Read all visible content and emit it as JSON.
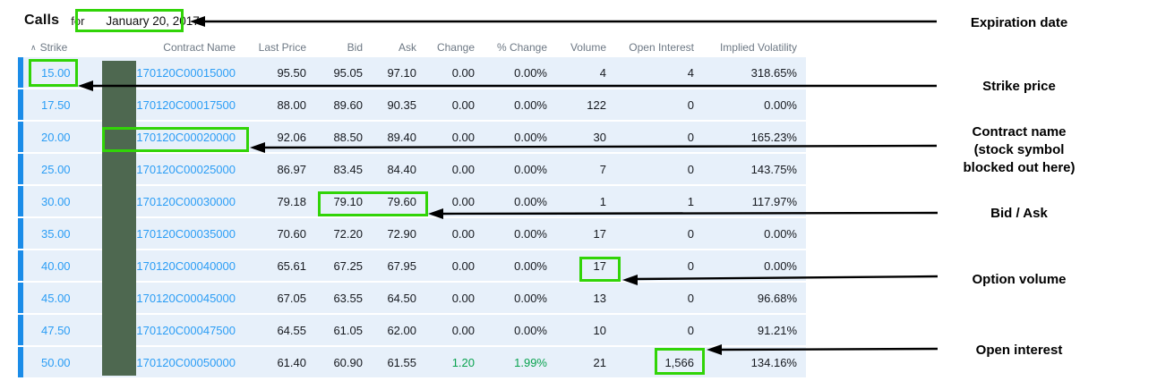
{
  "header": {
    "title": "Calls",
    "preposition": "for",
    "expiration_date": "January 20, 2017"
  },
  "table": {
    "sort_icon": "∧",
    "columns": [
      {
        "key": "strike",
        "label": "Strike",
        "link": true
      },
      {
        "key": "contract",
        "label": "Contract Name",
        "link": true
      },
      {
        "key": "last",
        "label": "Last Price"
      },
      {
        "key": "bid",
        "label": "Bid"
      },
      {
        "key": "ask",
        "label": "Ask"
      },
      {
        "key": "change",
        "label": "Change"
      },
      {
        "key": "pct_change",
        "label": "% Change"
      },
      {
        "key": "volume",
        "label": "Volume"
      },
      {
        "key": "open_interest",
        "label": "Open Interest"
      },
      {
        "key": "iv",
        "label": "Implied Volatility"
      }
    ],
    "rows": [
      {
        "strike": "15.00",
        "contract": "170120C00015000",
        "last": "95.50",
        "bid": "95.05",
        "ask": "97.10",
        "change": "0.00",
        "pct_change": "0.00%",
        "volume": "4",
        "open_interest": "4",
        "iv": "318.65%",
        "change_positive": false
      },
      {
        "strike": "17.50",
        "contract": "170120C00017500",
        "last": "88.00",
        "bid": "89.60",
        "ask": "90.35",
        "change": "0.00",
        "pct_change": "0.00%",
        "volume": "122",
        "open_interest": "0",
        "iv": "0.00%",
        "change_positive": false
      },
      {
        "strike": "20.00",
        "contract": "170120C00020000",
        "last": "92.06",
        "bid": "88.50",
        "ask": "89.40",
        "change": "0.00",
        "pct_change": "0.00%",
        "volume": "30",
        "open_interest": "0",
        "iv": "165.23%",
        "change_positive": false
      },
      {
        "strike": "25.00",
        "contract": "170120C00025000",
        "last": "86.97",
        "bid": "83.45",
        "ask": "84.40",
        "change": "0.00",
        "pct_change": "0.00%",
        "volume": "7",
        "open_interest": "0",
        "iv": "143.75%",
        "change_positive": false
      },
      {
        "strike": "30.00",
        "contract": "170120C00030000",
        "last": "79.18",
        "bid": "79.10",
        "ask": "79.60",
        "change": "0.00",
        "pct_change": "0.00%",
        "volume": "1",
        "open_interest": "1",
        "iv": "117.97%",
        "change_positive": false
      },
      {
        "strike": "35.00",
        "contract": "170120C00035000",
        "last": "70.60",
        "bid": "72.20",
        "ask": "72.90",
        "change": "0.00",
        "pct_change": "0.00%",
        "volume": "17",
        "open_interest": "0",
        "iv": "0.00%",
        "change_positive": false
      },
      {
        "strike": "40.00",
        "contract": "170120C00040000",
        "last": "65.61",
        "bid": "67.25",
        "ask": "67.95",
        "change": "0.00",
        "pct_change": "0.00%",
        "volume": "17",
        "open_interest": "0",
        "iv": "0.00%",
        "change_positive": false
      },
      {
        "strike": "45.00",
        "contract": "170120C00045000",
        "last": "67.05",
        "bid": "63.55",
        "ask": "64.50",
        "change": "0.00",
        "pct_change": "0.00%",
        "volume": "13",
        "open_interest": "0",
        "iv": "96.68%",
        "change_positive": false
      },
      {
        "strike": "47.50",
        "contract": "170120C00047500",
        "last": "64.55",
        "bid": "61.05",
        "ask": "62.00",
        "change": "0.00",
        "pct_change": "0.00%",
        "volume": "10",
        "open_interest": "0",
        "iv": "91.21%",
        "change_positive": false
      },
      {
        "strike": "50.00",
        "contract": "170120C00050000",
        "last": "61.40",
        "bid": "60.90",
        "ask": "61.55",
        "change": "1.20",
        "pct_change": "1.99%",
        "volume": "21",
        "open_interest": "1,566",
        "iv": "134.16%",
        "change_positive": true
      }
    ]
  },
  "annotations": {
    "labels": [
      {
        "id": "expiration-date",
        "lines": [
          "Expiration date"
        ]
      },
      {
        "id": "strike-price",
        "lines": [
          "Strike price"
        ]
      },
      {
        "id": "contract-name",
        "lines": [
          "Contract name",
          "(stock symbol",
          "blocked out here)"
        ]
      },
      {
        "id": "bid-ask",
        "lines": [
          "Bid / Ask"
        ]
      },
      {
        "id": "option-volume",
        "lines": [
          "Option volume"
        ]
      },
      {
        "id": "open-interest",
        "lines": [
          "Open interest"
        ]
      }
    ]
  },
  "colors": {
    "link_blue": "#2b9df5",
    "stripe_blue": "#1b8ce8",
    "row_background": "#e7f0fa",
    "positive_green": "#09a24f",
    "annotation_green": "#31d407",
    "redaction_block_green": "#4e6850",
    "header_gray": "#6d7884",
    "arrow_black": "#000000"
  }
}
